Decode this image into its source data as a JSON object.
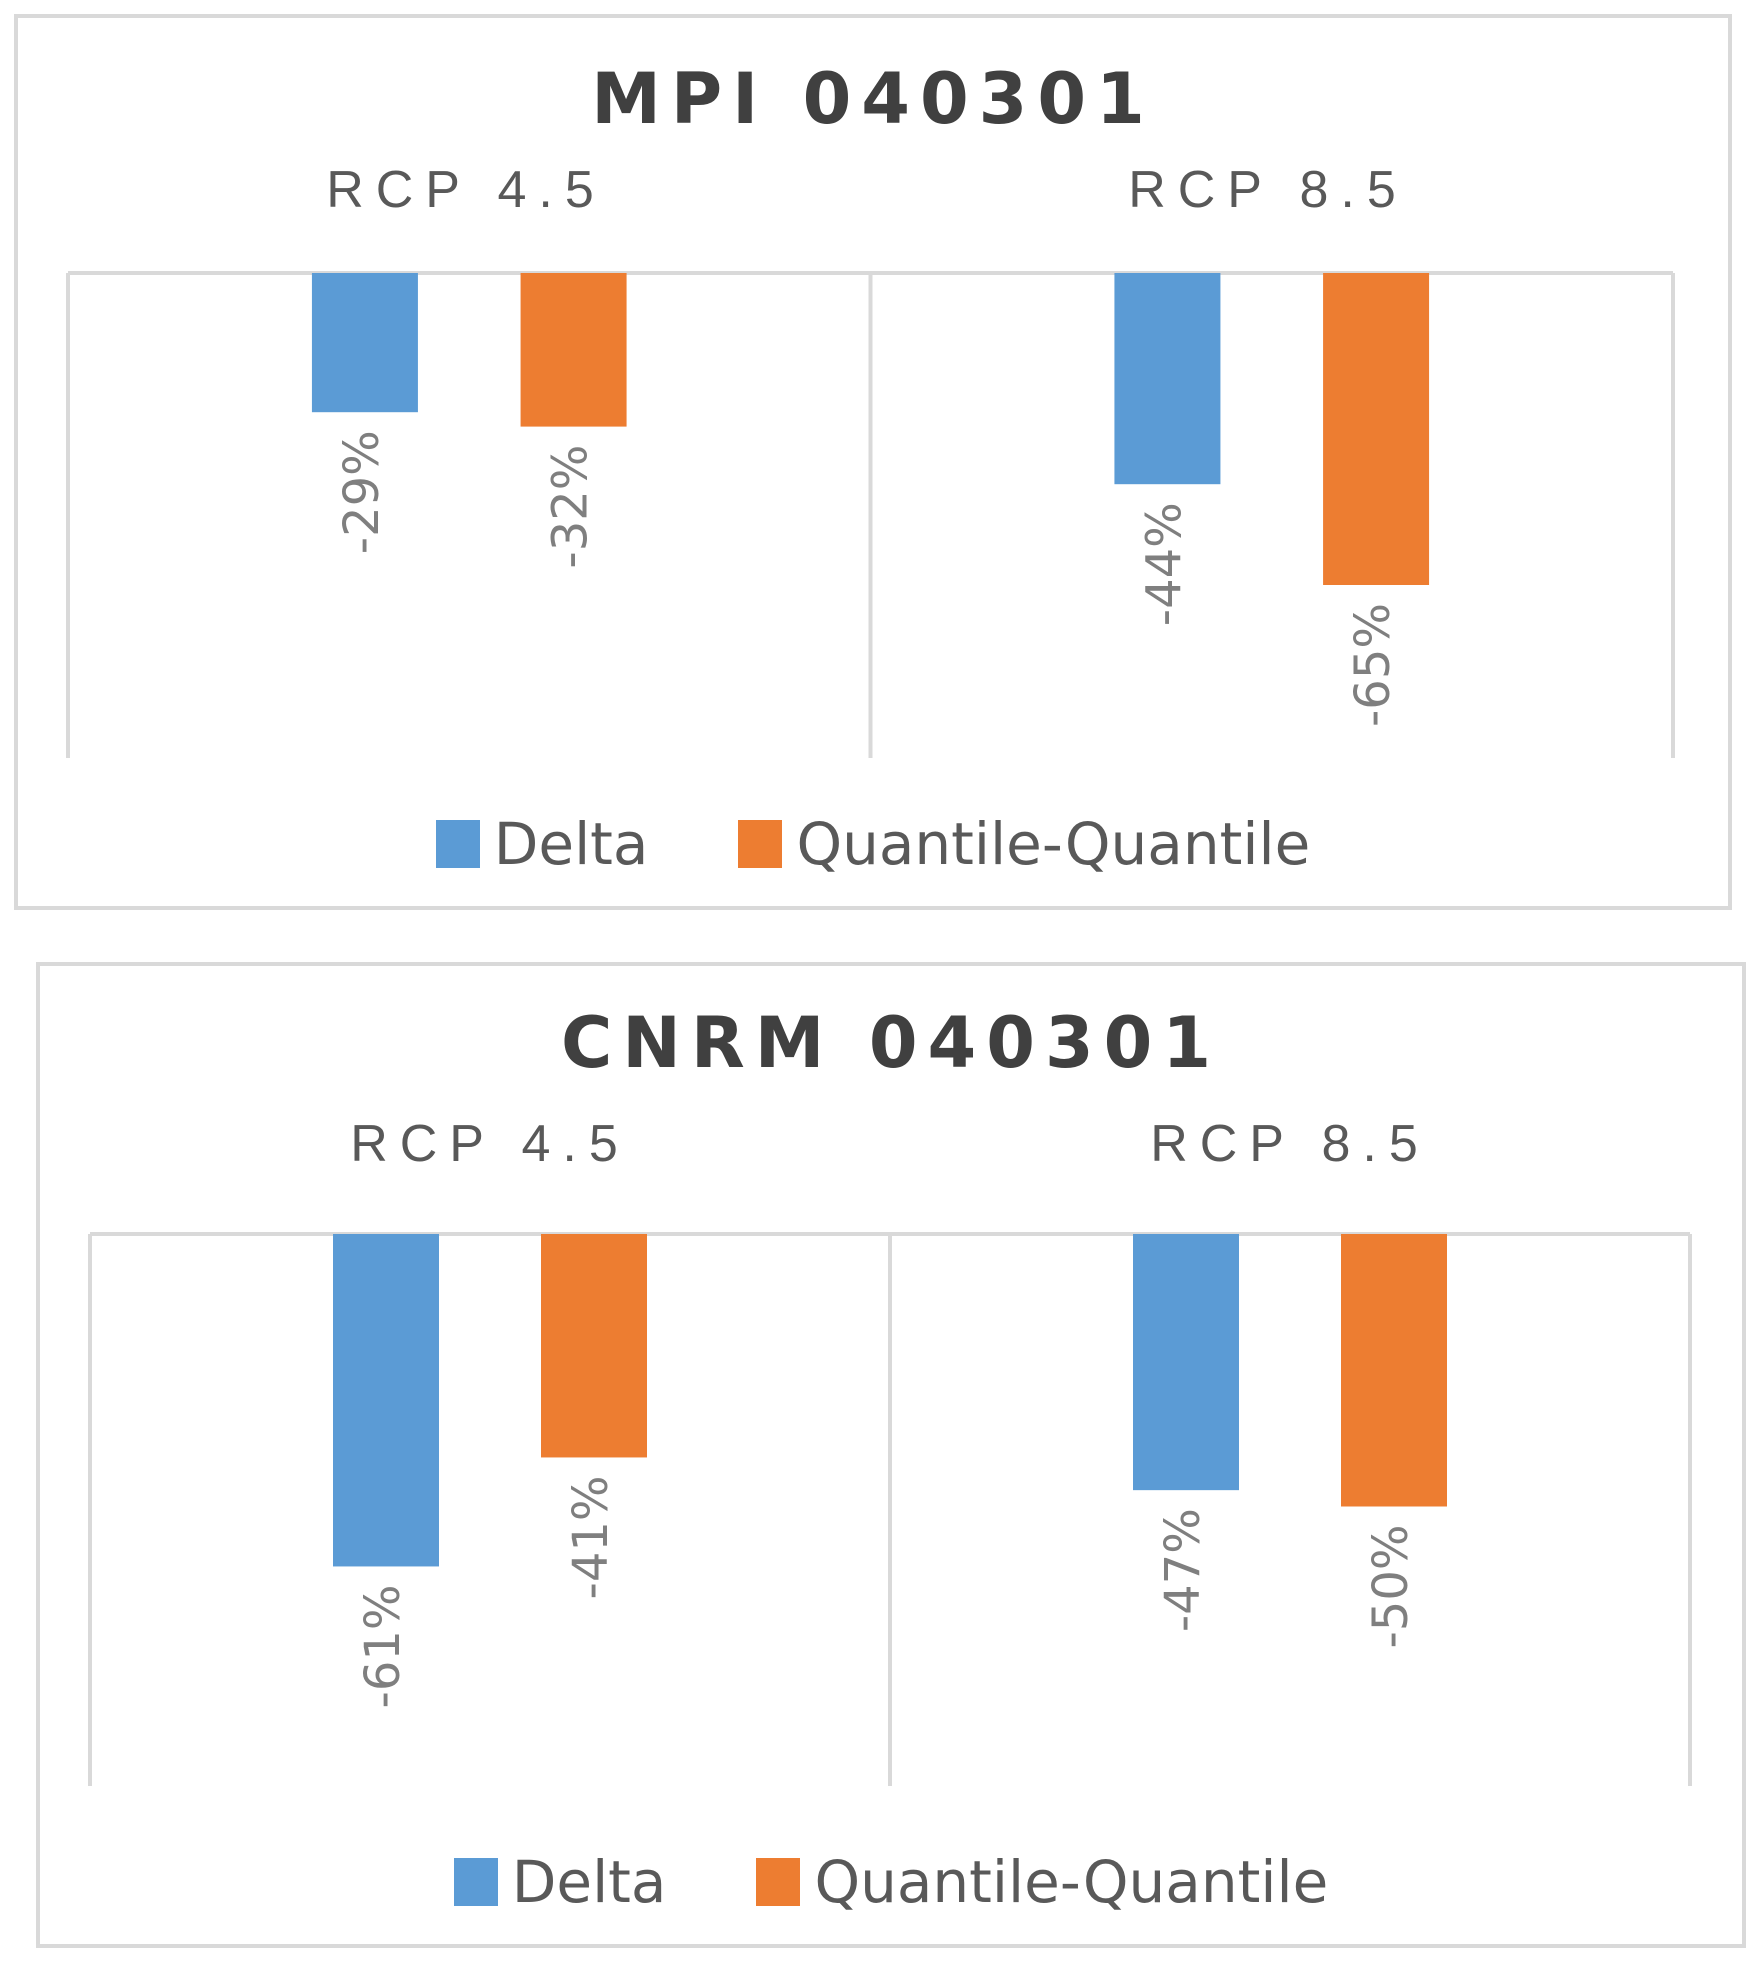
{
  "chart_data": [
    {
      "type": "bar",
      "title": "MPI 040301",
      "panels": [
        "RCP 4.5",
        "RCP 8.5"
      ],
      "series": [
        {
          "name": "Delta",
          "values": [
            -29,
            -44
          ],
          "labels": [
            "-29%",
            "-44%"
          ]
        },
        {
          "name": "Quantile-Quantile",
          "values": [
            -32,
            -65
          ],
          "labels": [
            "-32%",
            "-65%"
          ]
        }
      ],
      "ylim": [
        -100,
        0
      ],
      "grid": true,
      "legend": "bottom",
      "colors": {
        "Delta": "#5b9bd5",
        "Quantile-Quantile": "#ed7d31"
      }
    },
    {
      "type": "bar",
      "title": "CNRM 040301",
      "panels": [
        "RCP 4.5",
        "RCP 8.5"
      ],
      "series": [
        {
          "name": "Delta",
          "values": [
            -61,
            -47
          ],
          "labels": [
            "-61%",
            "-47%"
          ]
        },
        {
          "name": "Quantile-Quantile",
          "values": [
            -41,
            -50
          ],
          "labels": [
            "-41%",
            "-50%"
          ]
        }
      ],
      "ylim": [
        -100,
        0
      ],
      "grid": true,
      "legend": "bottom",
      "colors": {
        "Delta": "#5b9bd5",
        "Quantile-Quantile": "#ed7d31"
      }
    }
  ]
}
